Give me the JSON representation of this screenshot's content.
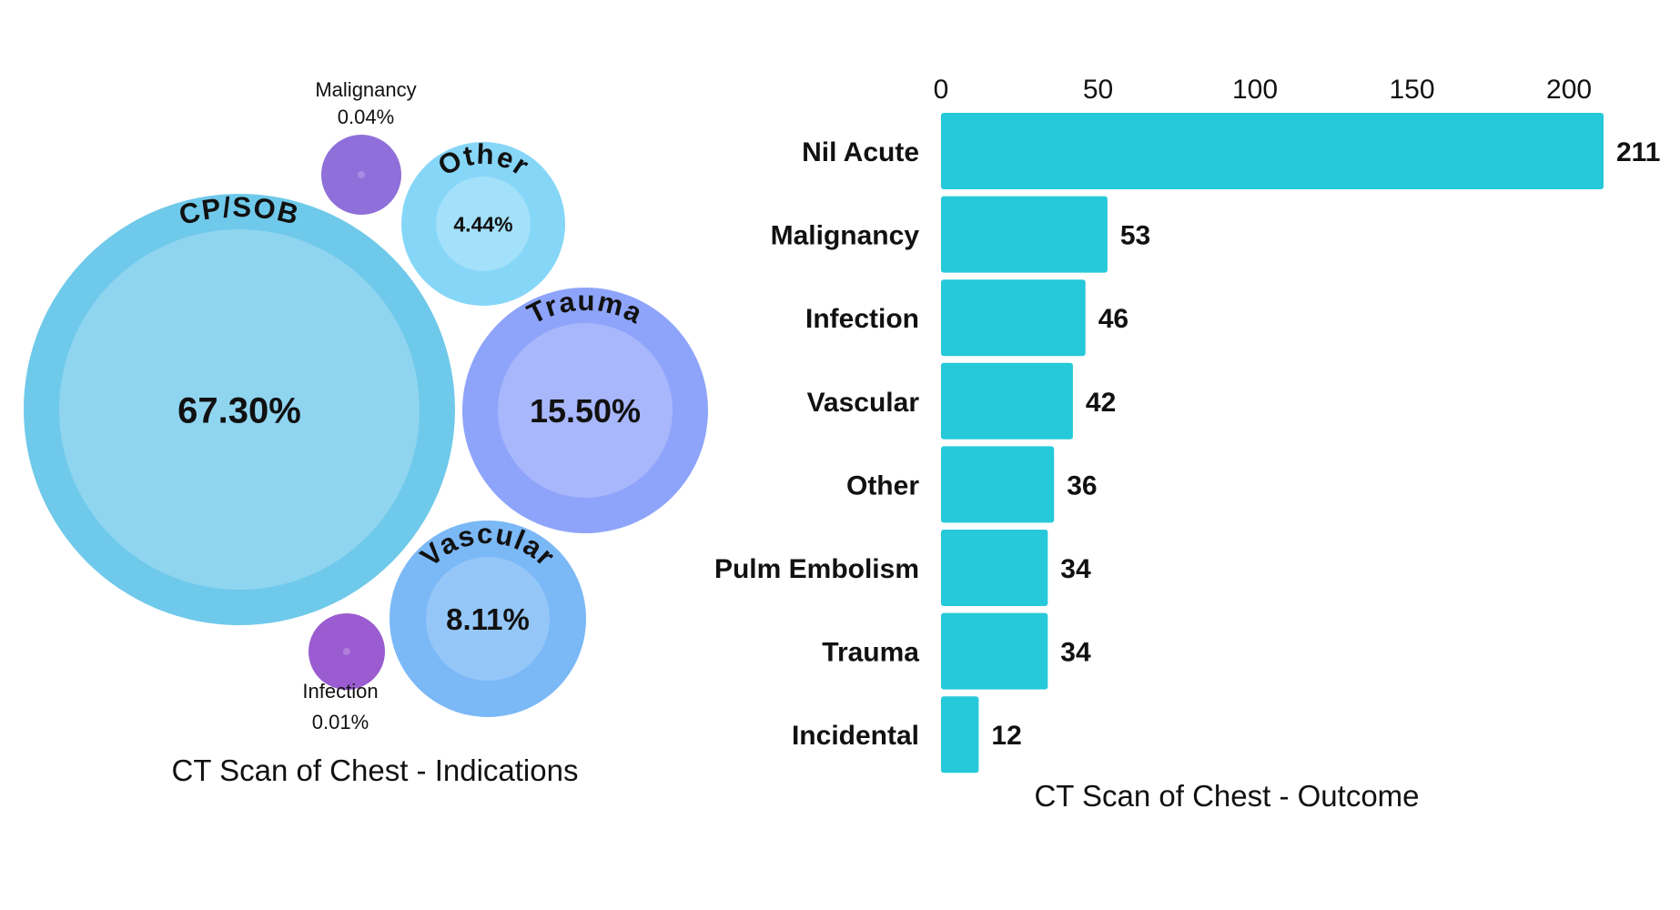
{
  "chart_data": [
    {
      "type": "bubble",
      "title": "CT Scan of Chest - Indications",
      "series": [
        {
          "name": "CP/SOB",
          "value_label": "67.30%",
          "value": 67.3,
          "color": "#6fc9ea",
          "inner_color": "#8fd5f0",
          "label_style": "arc"
        },
        {
          "name": "Trauma",
          "value_label": "15.50%",
          "value": 15.5,
          "color": "#8ea4fa",
          "inner_color": "#a8b6fb",
          "label_style": "arc"
        },
        {
          "name": "Vascular",
          "value_label": "8.11%",
          "value": 8.11,
          "color": "#7bb8f6",
          "inner_color": "#94c7f8",
          "label_style": "arc"
        },
        {
          "name": "Other",
          "value_label": "4.44%",
          "value": 4.44,
          "color": "#86d6f8",
          "inner_color": "#a3e0fa",
          "label_style": "arc"
        },
        {
          "name": "Malignancy",
          "value_label": "0.04%",
          "value": 0.04,
          "color": "#8f6fd9",
          "inner_color": "#a58be2",
          "label_style": "outside-top"
        },
        {
          "name": "Infection",
          "value_label": "0.01%",
          "value": 0.01,
          "color": "#9a5cd0",
          "inner_color": "#b07fdc",
          "label_style": "outside-bottom"
        }
      ]
    },
    {
      "type": "bar",
      "orientation": "horizontal",
      "title": "CT Scan of Chest - Outcome",
      "categories": [
        "Nil Acute",
        "Malignancy",
        "Infection",
        "Vascular",
        "Other",
        "Pulm Embolism",
        "Trauma",
        "Incidental"
      ],
      "values": [
        211,
        53,
        46,
        42,
        36,
        34,
        34,
        12
      ],
      "xlim": [
        0,
        211
      ],
      "xticks": [
        0,
        50,
        100,
        150,
        200
      ],
      "axis_position": "top",
      "bar_color": "#25c9d9",
      "grid": false,
      "data_labels": true
    }
  ]
}
